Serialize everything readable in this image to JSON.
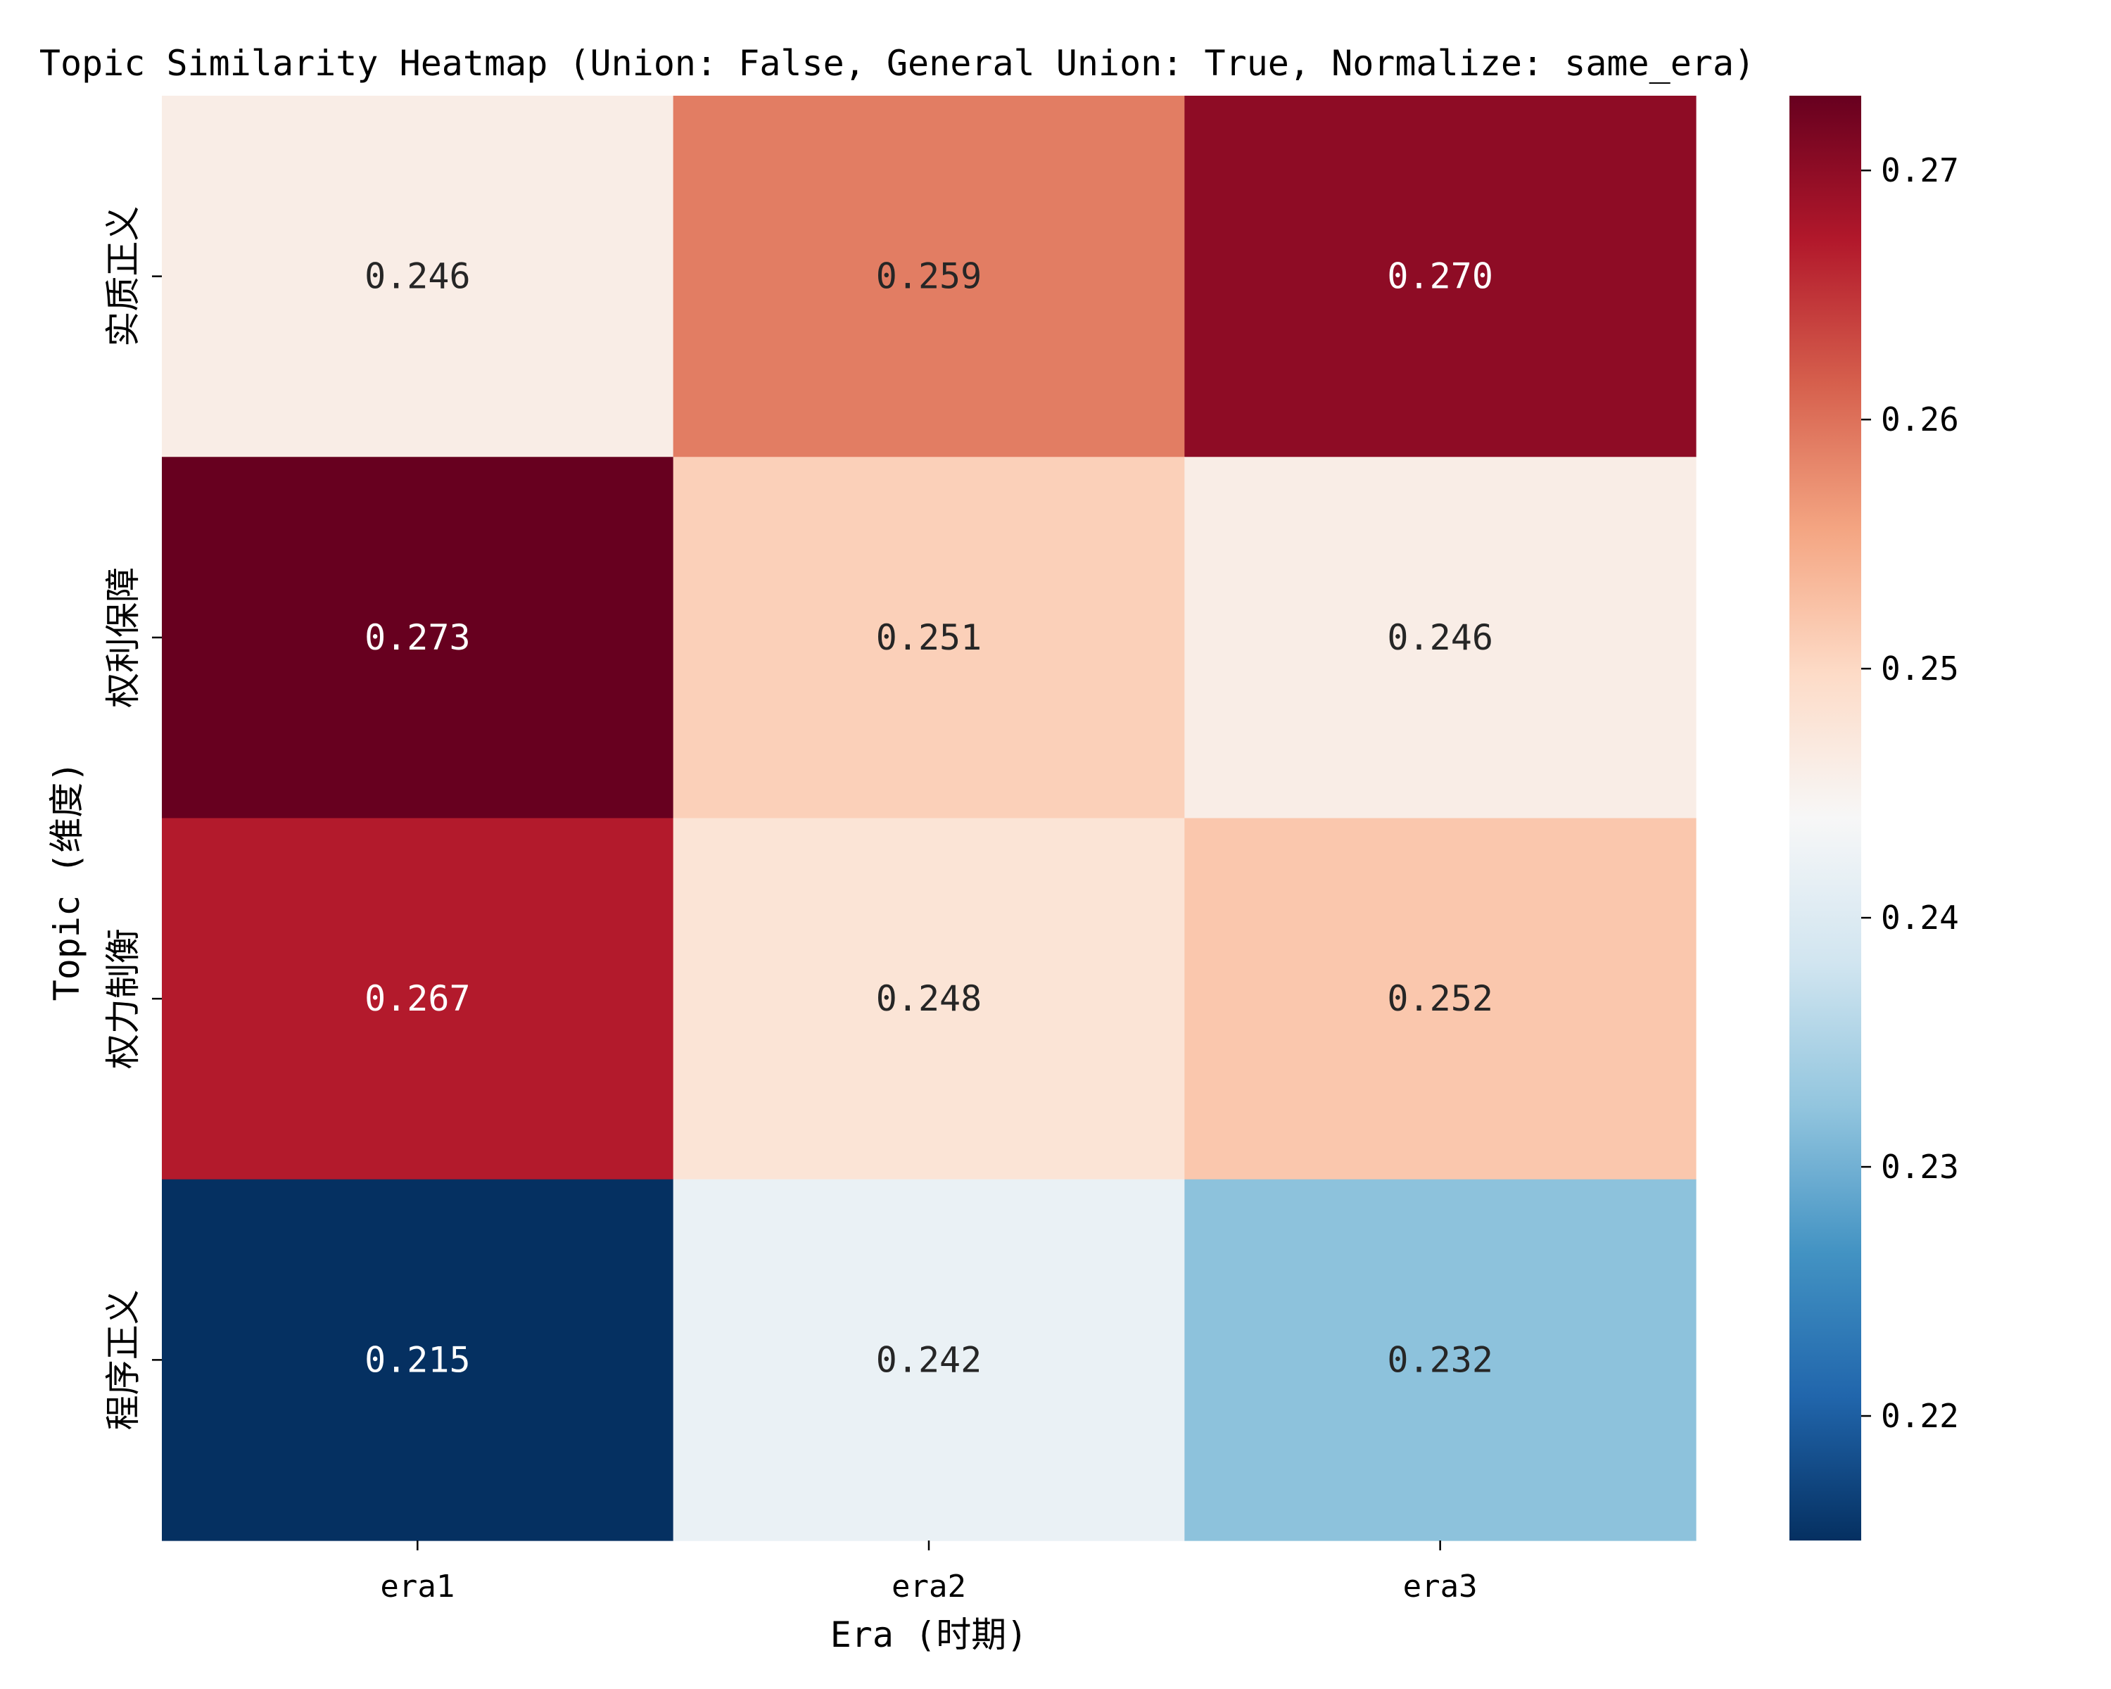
{
  "chart_data": {
    "type": "heatmap",
    "title": "Topic Similarity Heatmap (Union: False, General Union: True, Normalize: same_era)",
    "xlabel": "Era (时期)",
    "ylabel": "Topic (维度)",
    "x_categories": [
      "era1",
      "era2",
      "era3"
    ],
    "y_categories": [
      "实质正义",
      "权利保障",
      "权力制衡",
      "程序正义"
    ],
    "values": [
      [
        0.246,
        0.259,
        0.27
      ],
      [
        0.273,
        0.251,
        0.246
      ],
      [
        0.267,
        0.248,
        0.252
      ],
      [
        0.215,
        0.242,
        0.232
      ]
    ],
    "value_labels": [
      [
        "0.246",
        "0.259",
        "0.270"
      ],
      [
        "0.273",
        "0.251",
        "0.246"
      ],
      [
        "0.267",
        "0.248",
        "0.252"
      ],
      [
        "0.215",
        "0.242",
        "0.232"
      ]
    ],
    "colormap": "RdBu_r",
    "colorbar": {
      "range": [
        0.215,
        0.273
      ],
      "ticks": [
        0.22,
        0.23,
        0.24,
        0.25,
        0.26,
        0.27
      ],
      "tick_labels": [
        "0.22",
        "0.23",
        "0.24",
        "0.25",
        "0.26",
        "0.27"
      ],
      "placement": "right"
    },
    "grid": false
  }
}
